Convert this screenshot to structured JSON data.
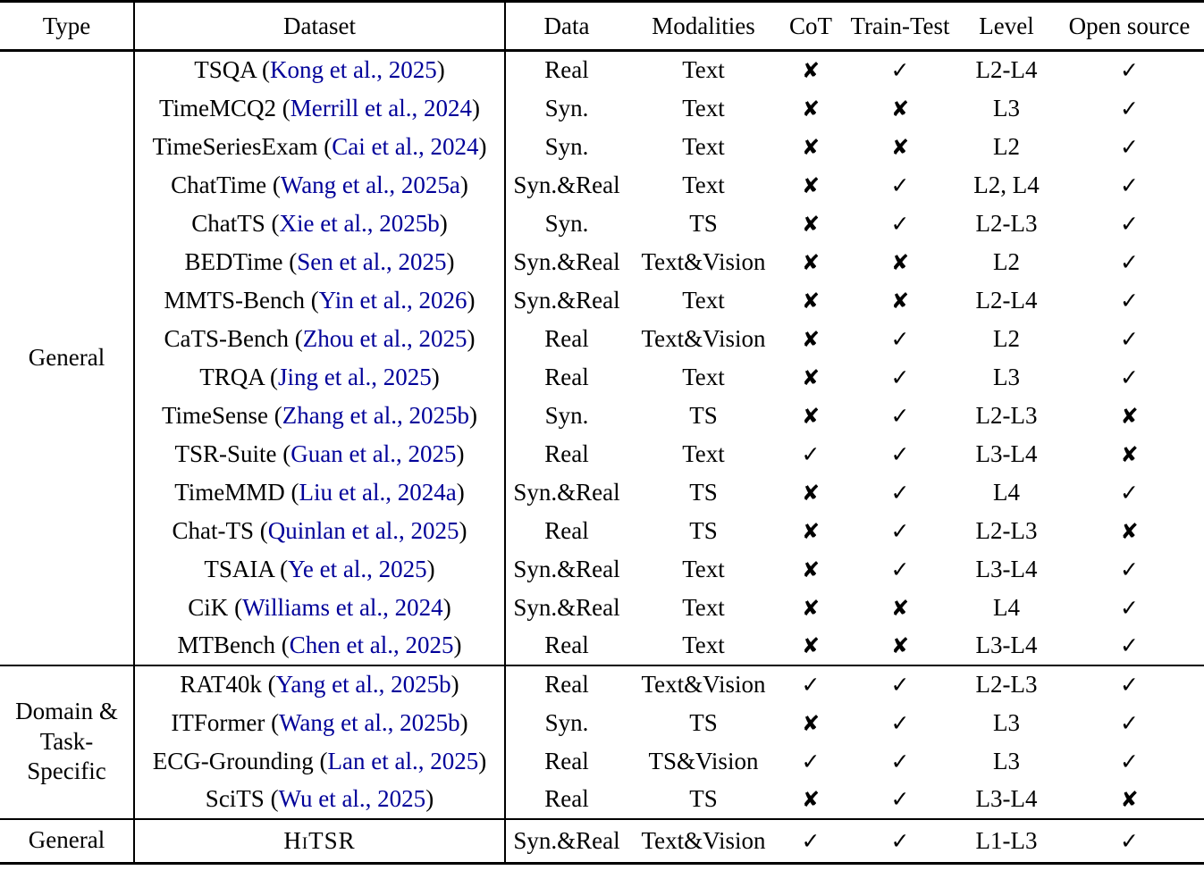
{
  "table": {
    "glyphs": {
      "yes": "✓",
      "no": "✘"
    },
    "link_color": "#000099",
    "columns": [
      {
        "label": "Type"
      },
      {
        "label": "Dataset"
      },
      {
        "label": "Data"
      },
      {
        "label": "Modalities"
      },
      {
        "label": "CoT"
      },
      {
        "label": "Train-Test"
      },
      {
        "label": "Level"
      },
      {
        "label": "Open source"
      }
    ],
    "sections": [
      {
        "type_lines": [
          "General"
        ],
        "rows": [
          {
            "name": "TSQA",
            "cite": "Kong et al., 2025",
            "data": "Real",
            "modalities": "Text",
            "cot": "✘",
            "train_test": "✓",
            "level": "L2-L4",
            "open_source": "✓"
          },
          {
            "name": "TimeMCQ2",
            "cite": "Merrill et al., 2024",
            "data": "Syn.",
            "modalities": "Text",
            "cot": "✘",
            "train_test": "✘",
            "level": "L3",
            "open_source": "✓"
          },
          {
            "name": "TimeSeriesExam",
            "cite": "Cai et al., 2024",
            "data": "Syn.",
            "modalities": "Text",
            "cot": "✘",
            "train_test": "✘",
            "level": "L2",
            "open_source": "✓"
          },
          {
            "name": "ChatTime",
            "cite": "Wang et al., 2025a",
            "data": "Syn.&Real",
            "modalities": "Text",
            "cot": "✘",
            "train_test": "✓",
            "level": "L2, L4",
            "open_source": "✓"
          },
          {
            "name": "ChatTS",
            "cite": "Xie et al., 2025b",
            "data": "Syn.",
            "modalities": "TS",
            "cot": "✘",
            "train_test": "✓",
            "level": "L2-L3",
            "open_source": "✓"
          },
          {
            "name": "BEDTime",
            "cite": "Sen et al., 2025",
            "data": "Syn.&Real",
            "modalities": "Text&Vision",
            "cot": "✘",
            "train_test": "✘",
            "level": "L2",
            "open_source": "✓"
          },
          {
            "name": "MMTS-Bench",
            "cite": "Yin et al., 2026",
            "data": "Syn.&Real",
            "modalities": "Text",
            "cot": "✘",
            "train_test": "✘",
            "level": "L2-L4",
            "open_source": "✓"
          },
          {
            "name": "CaTS-Bench",
            "cite": "Zhou et al., 2025",
            "data": "Real",
            "modalities": "Text&Vision",
            "cot": "✘",
            "train_test": "✓",
            "level": "L2",
            "open_source": "✓"
          },
          {
            "name": "TRQA",
            "cite": "Jing et al., 2025",
            "data": "Real",
            "modalities": "Text",
            "cot": "✘",
            "train_test": "✓",
            "level": "L3",
            "open_source": "✓"
          },
          {
            "name": "TimeSense",
            "cite": "Zhang et al., 2025b",
            "data": "Syn.",
            "modalities": "TS",
            "cot": "✘",
            "train_test": "✓",
            "level": "L2-L3",
            "open_source": "✘"
          },
          {
            "name": "TSR-Suite",
            "cite": "Guan et al., 2025",
            "data": "Real",
            "modalities": "Text",
            "cot": "✓",
            "train_test": "✓",
            "level": "L3-L4",
            "open_source": "✘"
          },
          {
            "name": "TimeMMD",
            "cite": "Liu et al., 2024a",
            "data": "Syn.&Real",
            "modalities": "TS",
            "cot": "✘",
            "train_test": "✓",
            "level": "L4",
            "open_source": "✓"
          },
          {
            "name": "Chat-TS",
            "cite": "Quinlan et al., 2025",
            "data": "Real",
            "modalities": "TS",
            "cot": "✘",
            "train_test": "✓",
            "level": "L2-L3",
            "open_source": "✘"
          },
          {
            "name": "TSAIA",
            "cite": "Ye et al., 2025",
            "data": "Syn.&Real",
            "modalities": "Text",
            "cot": "✘",
            "train_test": "✓",
            "level": "L3-L4",
            "open_source": "✓"
          },
          {
            "name": "CiK",
            "cite": "Williams et al., 2024",
            "data": "Syn.&Real",
            "modalities": "Text",
            "cot": "✘",
            "train_test": "✘",
            "level": "L4",
            "open_source": "✓"
          },
          {
            "name": "MTBench",
            "cite": "Chen et al., 2025",
            "data": "Real",
            "modalities": "Text",
            "cot": "✘",
            "train_test": "✘",
            "level": "L3-L4",
            "open_source": "✓"
          }
        ]
      },
      {
        "type_lines": [
          "Domain &",
          "Task-",
          "Specific"
        ],
        "rows": [
          {
            "name": "RAT40k",
            "cite": "Yang et al., 2025b",
            "data": "Real",
            "modalities": "Text&Vision",
            "cot": "✓",
            "train_test": "✓",
            "level": "L2-L3",
            "open_source": "✓"
          },
          {
            "name": "ITFormer",
            "cite": "Wang et al., 2025b",
            "data": "Syn.",
            "modalities": "TS",
            "cot": "✘",
            "train_test": "✓",
            "level": "L3",
            "open_source": "✓"
          },
          {
            "name": "ECG-Grounding",
            "cite": "Lan et al., 2025",
            "data": "Real",
            "modalities": "TS&Vision",
            "cot": "✓",
            "train_test": "✓",
            "level": "L3",
            "open_source": "✓"
          },
          {
            "name": "SciTS",
            "cite": "Wu et al., 2025",
            "data": "Real",
            "modalities": "TS",
            "cot": "✘",
            "train_test": "✓",
            "level": "L3-L4",
            "open_source": "✘"
          }
        ]
      },
      {
        "type_lines": [
          "General"
        ],
        "rows": [
          {
            "name": "HiTSR",
            "smallcaps": true,
            "cite": null,
            "data": "Syn.&Real",
            "modalities": "Text&Vision",
            "cot": "✓",
            "train_test": "✓",
            "level": "L1-L3",
            "open_source": "✓"
          }
        ]
      }
    ]
  }
}
